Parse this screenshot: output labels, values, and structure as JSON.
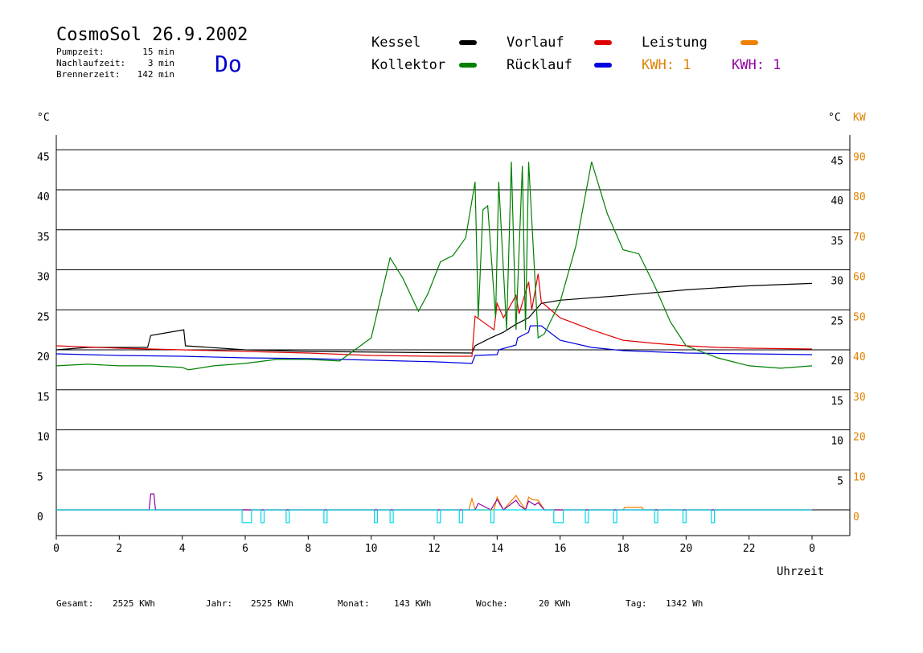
{
  "header": {
    "title": "CosmoSol 26.9.2002",
    "day": "Do",
    "stats": [
      {
        "label": "Pumpzeit:",
        "value": "15 min"
      },
      {
        "label": "Nachlaufzeit:",
        "value": "3 min"
      },
      {
        "label": "Brennerzeit:",
        "value": "142 min"
      }
    ]
  },
  "legend": [
    {
      "label": "Kessel",
      "color": "#000000"
    },
    {
      "label": "Vorlauf",
      "color": "#e00000"
    },
    {
      "label": "Leistung",
      "color": "#f08000"
    },
    {
      "label": "Kollektor",
      "color": "#008000"
    },
    {
      "label": "Rücklauf",
      "color": "#0000e0"
    }
  ],
  "kwh": [
    {
      "text": "KWH: 1",
      "color": "#e08000"
    },
    {
      "text": "KWH: 1",
      "color": "#9000a0"
    }
  ],
  "axes": {
    "y_left_unit": "°C",
    "y_right_unit": "°C",
    "y_right_unit2": "KW",
    "x_label": "Uhrzeit",
    "x_ticks": [
      "0",
      "2",
      "4",
      "6",
      "8",
      "10",
      "12",
      "14",
      "16",
      "18",
      "20",
      "22",
      "0"
    ],
    "y_ticks_left": [
      "0",
      "5",
      "10",
      "15",
      "20",
      "25",
      "30",
      "35",
      "40",
      "45"
    ],
    "y_ticks_right_c": [
      "5",
      "10",
      "15",
      "20",
      "25",
      "30",
      "35",
      "40",
      "45"
    ],
    "y_ticks_right_kw": [
      "0",
      "10",
      "20",
      "30",
      "40",
      "50",
      "60",
      "70",
      "80",
      "90"
    ]
  },
  "footer": [
    {
      "label": "Gesamt:",
      "value": "2525 KWh"
    },
    {
      "label": "Jahr:",
      "value": "2525 KWh"
    },
    {
      "label": "Monat:",
      "value": "143 KWh"
    },
    {
      "label": "Woche:",
      "value": "20 KWh"
    },
    {
      "label": "Tag:",
      "value": "1342 Wh"
    }
  ],
  "chart_data": {
    "type": "line",
    "x_unit": "hour",
    "xlim": [
      0,
      24
    ],
    "ylim": [
      0,
      45
    ],
    "ylim_right_kw": [
      0,
      90
    ],
    "grid": true,
    "series": [
      {
        "name": "Kessel",
        "color": "#000000",
        "x": [
          0,
          1,
          2.9,
          3,
          4.05,
          4.1,
          6,
          8,
          13.2,
          13.3,
          13.8,
          14.2,
          14.6,
          15.0,
          15.4,
          16,
          18,
          20,
          22,
          24
        ],
        "values": [
          20,
          20.3,
          20.3,
          21.8,
          22.5,
          20.5,
          20.0,
          19.8,
          19.6,
          20.5,
          21.5,
          22.2,
          23.2,
          24.0,
          25.8,
          26.2,
          26.8,
          27.5,
          28.0,
          28.3
        ]
      },
      {
        "name": "Vorlauf",
        "color": "#e00000",
        "x": [
          0,
          2,
          4,
          6,
          8,
          10,
          12,
          13.2,
          13.3,
          13.9,
          14.0,
          14.2,
          14.6,
          14.7,
          15.0,
          15.1,
          15.3,
          15.4,
          16,
          17,
          18,
          19,
          20,
          21,
          22,
          24
        ],
        "values": [
          20.5,
          20.2,
          20.0,
          19.8,
          19.6,
          19.3,
          19.2,
          19.2,
          24.2,
          22.5,
          25.8,
          24.0,
          26.8,
          24.5,
          28.5,
          25.0,
          29.5,
          26.0,
          24.0,
          22.5,
          21.2,
          20.8,
          20.5,
          20.3,
          20.2,
          20.1
        ]
      },
      {
        "name": "Rücklauf",
        "color": "#0000e0",
        "x": [
          0,
          2,
          4,
          6,
          8,
          10,
          12,
          13.2,
          13.3,
          14.0,
          14.05,
          14.6,
          14.65,
          15.0,
          15.05,
          15.4,
          16,
          17,
          18,
          20,
          22,
          24
        ],
        "values": [
          19.5,
          19.3,
          19.2,
          19.0,
          18.9,
          18.7,
          18.5,
          18.3,
          19.3,
          19.4,
          20.0,
          20.6,
          21.5,
          22.2,
          23.0,
          23.0,
          21.2,
          20.3,
          19.9,
          19.6,
          19.5,
          19.4
        ]
      },
      {
        "name": "Kollektor",
        "color": "#008000",
        "x": [
          0,
          1,
          2,
          3,
          4,
          4.2,
          5,
          6,
          7,
          8,
          9,
          10,
          10.6,
          11,
          11.5,
          11.8,
          12.2,
          12.6,
          13.0,
          13.3,
          13.4,
          13.55,
          13.7,
          13.95,
          14.05,
          14.3,
          14.45,
          14.6,
          14.8,
          14.9,
          15.0,
          15.3,
          15.5,
          16,
          16.5,
          17,
          17.5,
          18,
          18.5,
          19,
          19.5,
          20,
          21,
          22,
          23,
          24
        ],
        "values": [
          18.0,
          18.2,
          18.0,
          18.0,
          17.8,
          17.5,
          18.0,
          18.3,
          18.8,
          18.8,
          18.6,
          21.5,
          31.5,
          29.0,
          24.8,
          27.0,
          31.0,
          31.8,
          34.0,
          41.0,
          24.0,
          37.5,
          38.0,
          24.0,
          41.0,
          22.5,
          43.5,
          22.5,
          43.0,
          22.5,
          43.5,
          21.5,
          22.0,
          26.0,
          33.0,
          43.5,
          37.0,
          32.5,
          32.0,
          28.0,
          23.5,
          20.5,
          19.0,
          18.0,
          17.7,
          18.0
        ]
      },
      {
        "name": "Leistung",
        "color": "#f08000",
        "x": [
          0,
          13.1,
          13.2,
          13.3,
          13.9,
          14.0,
          14.2,
          14.6,
          14.7,
          14.9,
          15.0,
          15.1,
          15.3,
          15.5,
          15.6,
          18.0,
          18.05,
          18.6,
          18.65,
          24
        ],
        "values": [
          0,
          0,
          1.4,
          0,
          0,
          1.6,
          0,
          1.8,
          1.2,
          0,
          1.6,
          1.3,
          1.2,
          0,
          0,
          0,
          0.3,
          0.3,
          0,
          0
        ]
      },
      {
        "name": "Brenner",
        "color": "#9000a0",
        "x": [
          0,
          2.95,
          3.0,
          3.1,
          3.15,
          13.3,
          13.4,
          13.8,
          14.0,
          14.2,
          14.6,
          14.7,
          14.9,
          15.0,
          15.2,
          15.3,
          15.5,
          24
        ],
        "values": [
          0,
          0,
          2.0,
          2.0,
          0,
          0,
          0.8,
          0,
          1.3,
          0,
          1.2,
          0.6,
          0,
          1.1,
          0.6,
          0.9,
          0,
          0
        ]
      },
      {
        "name": "Pumpe",
        "color": "#00d8e8",
        "x": [
          0,
          5.9,
          5.9,
          6.2,
          6.2,
          6.5,
          6.5,
          6.6,
          6.6,
          7.3,
          7.3,
          7.4,
          7.4,
          8.5,
          8.5,
          8.6,
          8.6,
          10.1,
          10.1,
          10.2,
          10.2,
          10.6,
          10.6,
          10.7,
          10.7,
          12.1,
          12.1,
          12.2,
          12.2,
          12.8,
          12.8,
          12.9,
          12.9,
          13.8,
          13.8,
          13.9,
          13.9,
          15.8,
          15.8,
          16.1,
          16.1,
          16.8,
          16.8,
          16.9,
          16.9,
          17.7,
          17.7,
          17.8,
          17.8,
          19.0,
          19.0,
          19.1,
          19.1,
          19.9,
          19.9,
          20.0,
          20.0,
          20.8,
          20.8,
          20.9,
          20.9,
          24
        ],
        "values": [
          0,
          0,
          -1.6,
          -1.6,
          0,
          0,
          -1.6,
          -1.6,
          0,
          0,
          -1.6,
          -1.6,
          0,
          0,
          -1.6,
          -1.6,
          0,
          0,
          -1.6,
          -1.6,
          0,
          0,
          -1.6,
          -1.6,
          0,
          0,
          -1.6,
          -1.6,
          0,
          0,
          -1.6,
          -1.6,
          0,
          0,
          -1.6,
          -1.6,
          0,
          0,
          -1.6,
          -1.6,
          0,
          0,
          -1.6,
          -1.6,
          0,
          0,
          -1.6,
          -1.6,
          0,
          0,
          -1.6,
          -1.6,
          0,
          0,
          -1.6,
          -1.6,
          0,
          0,
          -1.6,
          -1.6,
          0,
          0
        ]
      }
    ]
  }
}
